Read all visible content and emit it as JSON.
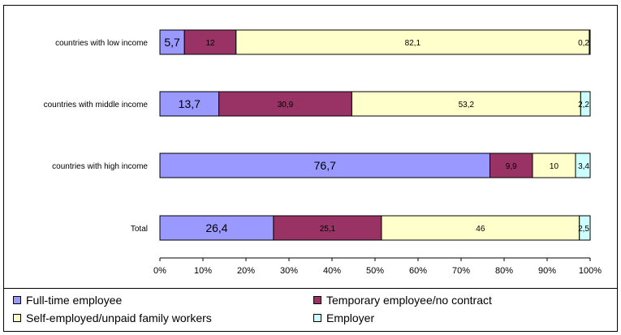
{
  "chart_data": {
    "type": "bar",
    "orientation": "horizontal",
    "stacked": "percent",
    "categories": [
      "countries with low income",
      "countries with middle income",
      "countries with high income",
      "Total"
    ],
    "series": [
      {
        "name": "Full-time employee",
        "color": "#9999ff",
        "values": [
          5.7,
          13.7,
          76.7,
          26.4
        ],
        "labels": [
          "5,7",
          "13,7",
          "76,7",
          "26,4"
        ]
      },
      {
        "name": "Temporary employee/no contract",
        "color": "#993366",
        "values": [
          12,
          30.9,
          9.9,
          25.1
        ],
        "labels": [
          "12",
          "30,9",
          "9,9",
          "25,1"
        ]
      },
      {
        "name": "Self-employed/unpaid family workers",
        "color": "#ffffcc",
        "values": [
          82.1,
          53.2,
          10,
          46
        ],
        "labels": [
          "82,1",
          "53,2",
          "10",
          "46"
        ]
      },
      {
        "name": "Employer",
        "color": "#ccffff",
        "values": [
          0.2,
          2.2,
          3.4,
          2.5
        ],
        "labels": [
          "0,2",
          "2,2",
          "3,4",
          "2,5"
        ]
      }
    ],
    "xlim": [
      0,
      100
    ],
    "xticks": [
      "0%",
      "10%",
      "20%",
      "30%",
      "40%",
      "50%",
      "60%",
      "70%",
      "80%",
      "90%",
      "100%"
    ],
    "legend_position": "bottom",
    "grid": false
  }
}
